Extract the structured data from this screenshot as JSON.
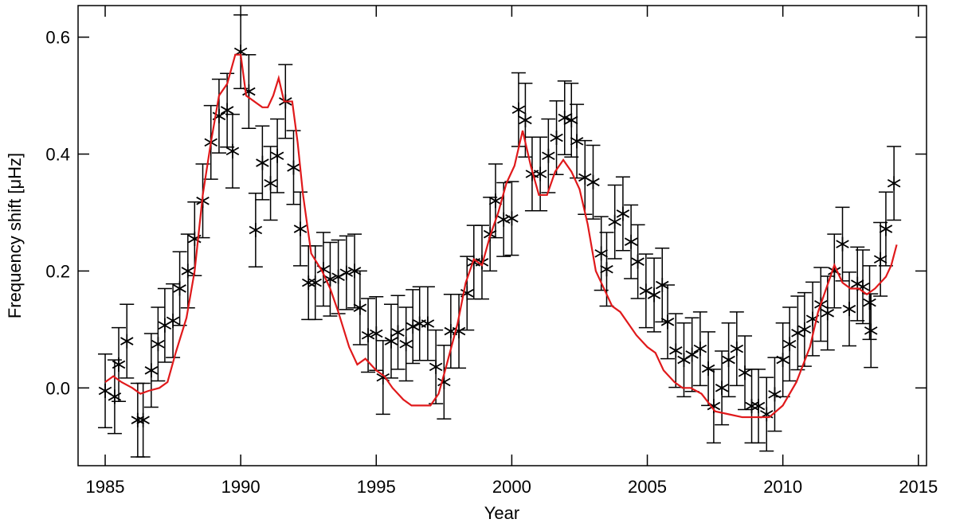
{
  "chart_data": {
    "type": "scatter",
    "xlabel": "Year",
    "ylabel": "Frequency shift [μHz]",
    "xlim": [
      1984,
      2015.3
    ],
    "ylim": [
      -0.133,
      0.654
    ],
    "xticks": [
      1985,
      1990,
      1995,
      2000,
      2005,
      2010,
      2015
    ],
    "yticks": [
      {
        "value": 0,
        "label": "0.0"
      },
      0.2,
      0.4,
      0.6
    ],
    "series": [
      {
        "type": "errorbar",
        "color": "#000000",
        "yerr": 0.063,
        "x": [
          1985.0,
          1985.35,
          1985.5,
          1985.8,
          1986.2,
          1986.4,
          1986.7,
          1986.95,
          1987.2,
          1987.5,
          1987.75,
          1988.05,
          1988.3,
          1988.6,
          1988.9,
          1989.2,
          1989.5,
          1989.7,
          1990.0,
          1990.3,
          1990.55,
          1990.8,
          1991.1,
          1991.35,
          1991.65,
          1991.95,
          1992.2,
          1992.5,
          1992.75,
          1993.05,
          1993.3,
          1993.6,
          1993.9,
          1994.2,
          1994.4,
          1994.7,
          1995.0,
          1995.25,
          1995.55,
          1995.8,
          1996.1,
          1996.35,
          1996.6,
          1996.9,
          1997.2,
          1997.5,
          1997.75,
          1998.05,
          1998.35,
          1998.6,
          1998.9,
          1999.2,
          1999.4,
          1999.7,
          2000.0,
          2000.25,
          2000.5,
          2000.75,
          2001.05,
          2001.35,
          2001.65,
          2001.95,
          2002.2,
          2002.4,
          2002.7,
          2003.0,
          2003.3,
          2003.5,
          2003.8,
          2004.1,
          2004.4,
          2004.65,
          2004.95,
          2005.25,
          2005.55,
          2005.75,
          2006.05,
          2006.35,
          2006.65,
          2006.95,
          2007.25,
          2007.45,
          2007.75,
          2008.0,
          2008.3,
          2008.6,
          2008.85,
          2009.1,
          2009.4,
          2009.7,
          2010.0,
          2010.25,
          2010.55,
          2010.8,
          2011.1,
          2011.4,
          2011.65,
          2011.9,
          2012.2,
          2012.45,
          2012.75,
          2012.95,
          2013.2,
          2013.25,
          2013.6,
          2013.8,
          2014.1
        ],
        "values": [
          -0.005,
          -0.015,
          0.04,
          0.08,
          -0.055,
          -0.055,
          0.03,
          0.075,
          0.107,
          0.115,
          0.17,
          0.2,
          0.255,
          0.32,
          0.42,
          0.465,
          0.475,
          0.405,
          0.575,
          0.507,
          0.27,
          0.385,
          0.35,
          0.397,
          0.49,
          0.377,
          0.272,
          0.18,
          0.18,
          0.203,
          0.186,
          0.19,
          0.197,
          0.2,
          0.137,
          0.09,
          0.093,
          0.018,
          0.08,
          0.095,
          0.075,
          0.105,
          0.11,
          0.11,
          0.036,
          0.01,
          0.097,
          0.097,
          0.162,
          0.215,
          0.215,
          0.263,
          0.32,
          0.288,
          0.29,
          0.476,
          0.458,
          0.366,
          0.366,
          0.397,
          0.428,
          0.462,
          0.458,
          0.422,
          0.36,
          0.352,
          0.23,
          0.203,
          0.284,
          0.298,
          0.25,
          0.216,
          0.166,
          0.159,
          0.176,
          0.113,
          0.064,
          0.048,
          0.057,
          0.067,
          0.033,
          -0.031,
          0.0,
          0.048,
          0.067,
          0.026,
          -0.031,
          -0.031,
          -0.045,
          -0.011,
          0.048,
          0.075,
          0.094,
          0.1,
          0.118,
          0.143,
          0.128,
          0.2,
          0.246,
          0.135,
          0.178,
          0.173,
          0.146,
          0.098,
          0.22,
          0.272,
          0.35
        ]
      },
      {
        "type": "line",
        "color": "#e0191b",
        "x": [
          1985.0,
          1985.3,
          1985.6,
          1986.0,
          1986.3,
          1986.6,
          1987.0,
          1987.3,
          1987.6,
          1988.0,
          1988.3,
          1988.6,
          1988.9,
          1989.2,
          1989.5,
          1989.8,
          1990.0,
          1990.2,
          1990.5,
          1990.8,
          1991.0,
          1991.2,
          1991.4,
          1991.6,
          1991.9,
          1992.1,
          1992.3,
          1992.6,
          1993.0,
          1993.3,
          1993.6,
          1994.0,
          1994.3,
          1994.6,
          1995.0,
          1995.3,
          1995.6,
          1996.0,
          1996.3,
          1996.6,
          1997.0,
          1997.3,
          1997.6,
          1998.0,
          1998.3,
          1998.6,
          1998.9,
          1999.2,
          1999.5,
          1999.8,
          2000.1,
          2000.4,
          2000.7,
          2001.0,
          2001.3,
          2001.6,
          2001.9,
          2002.2,
          2002.5,
          2002.8,
          2003.1,
          2003.4,
          2003.7,
          2004.0,
          2004.3,
          2004.6,
          2005.0,
          2005.3,
          2005.6,
          2006.0,
          2006.3,
          2006.6,
          2007.0,
          2007.5,
          2008.0,
          2008.5,
          2009.0,
          2009.5,
          2010.0,
          2010.5,
          2011.0,
          2011.3,
          2011.6,
          2011.9,
          2012.2,
          2012.5,
          2012.8,
          2013.1,
          2013.4,
          2013.8,
          2014.0,
          2014.2
        ],
        "values": [
          0.01,
          0.02,
          0.01,
          0.0,
          -0.01,
          -0.005,
          0.0,
          0.01,
          0.06,
          0.12,
          0.2,
          0.33,
          0.42,
          0.5,
          0.52,
          0.57,
          0.57,
          0.5,
          0.49,
          0.48,
          0.48,
          0.5,
          0.53,
          0.49,
          0.49,
          0.42,
          0.33,
          0.23,
          0.2,
          0.17,
          0.13,
          0.07,
          0.04,
          0.05,
          0.03,
          0.02,
          0.0,
          -0.02,
          -0.03,
          -0.03,
          -0.03,
          -0.01,
          0.04,
          0.11,
          0.18,
          0.22,
          0.21,
          0.26,
          0.3,
          0.35,
          0.38,
          0.44,
          0.38,
          0.33,
          0.33,
          0.37,
          0.39,
          0.37,
          0.34,
          0.28,
          0.2,
          0.17,
          0.14,
          0.13,
          0.11,
          0.09,
          0.07,
          0.06,
          0.03,
          0.01,
          0.0,
          0.0,
          -0.01,
          -0.04,
          -0.045,
          -0.05,
          -0.05,
          -0.05,
          -0.03,
          0.01,
          0.07,
          0.13,
          0.17,
          0.21,
          0.18,
          0.17,
          0.17,
          0.16,
          0.17,
          0.19,
          0.21,
          0.245
        ]
      }
    ]
  }
}
